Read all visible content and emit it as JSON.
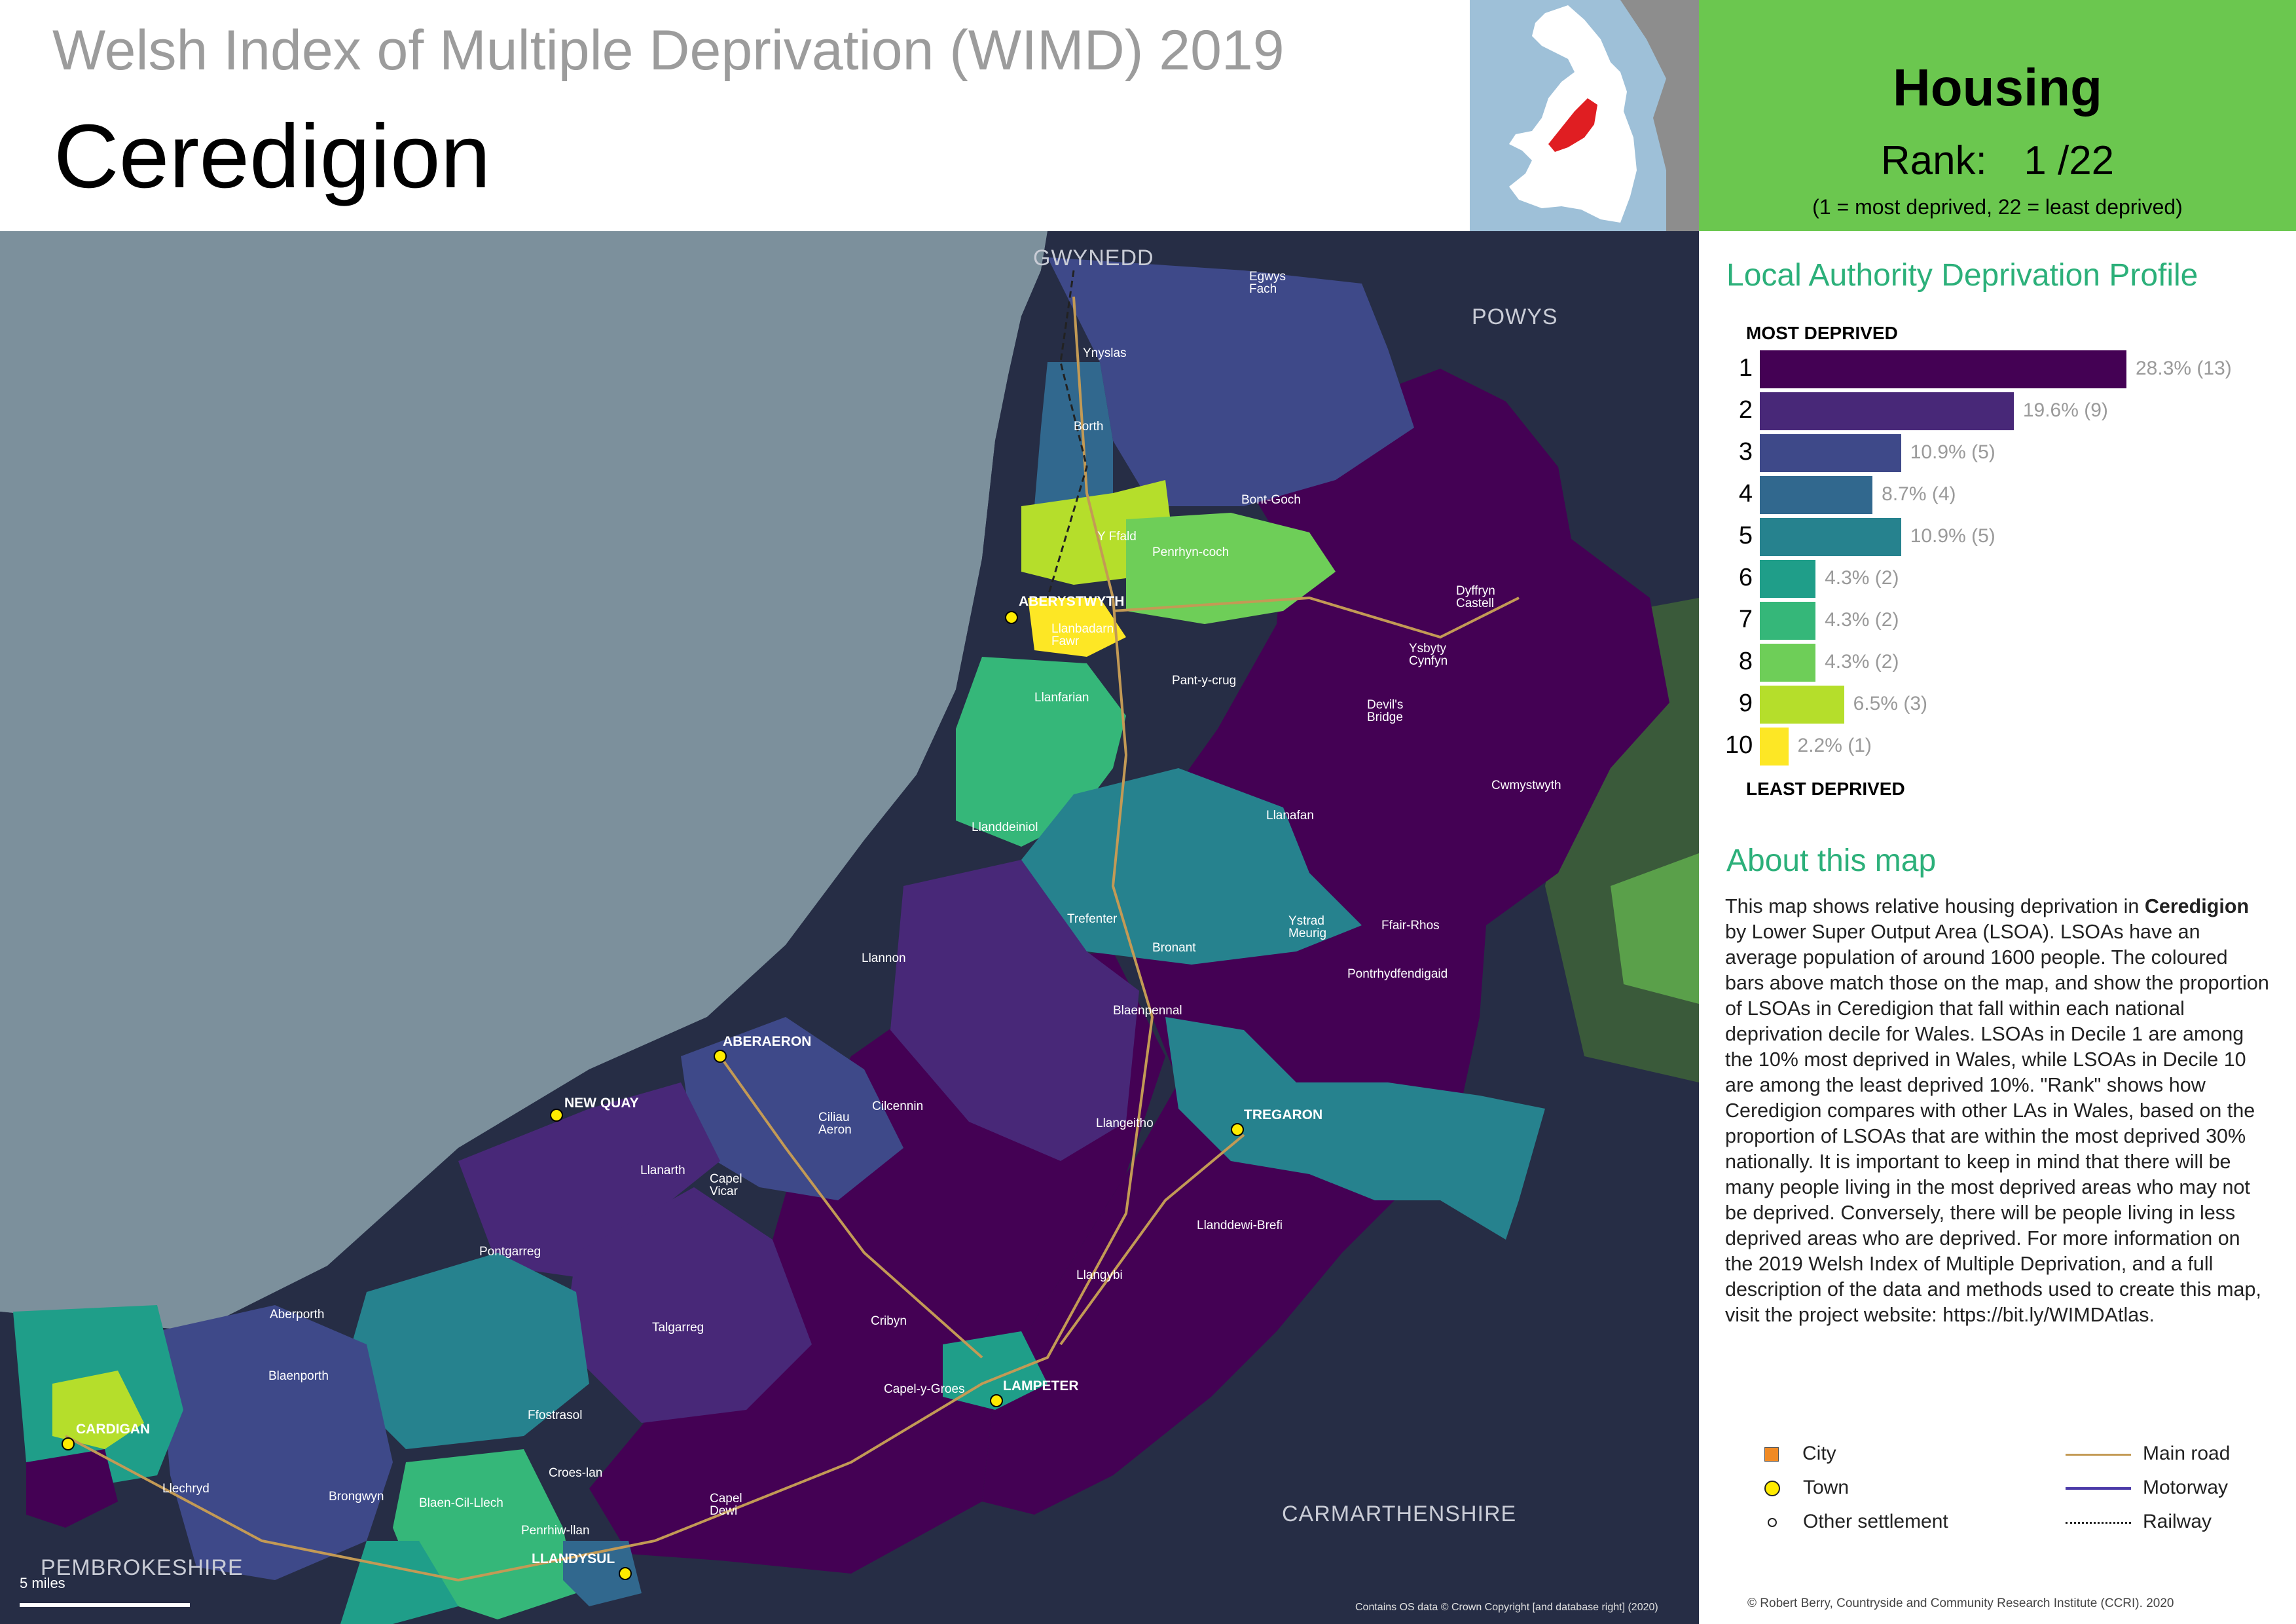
{
  "header": {
    "super_title": "Welsh Index of Multiple Deprivation (WIMD) 2019",
    "la_name": "Ceredigion"
  },
  "domain_panel": {
    "domain": "Housing",
    "rank_label": "Rank:",
    "rank_value": "1 /22",
    "rank_note": "(1 =   most deprived, 22 = least deprived)",
    "color": "#6bc74f"
  },
  "profile": {
    "title": "Local Authority Deprivation Profile",
    "most_label": "MOST DEPRIVED",
    "least_label": "LEAST DEPRIVED",
    "deciles": [
      {
        "decile": "1",
        "percent": 28.3,
        "label": "28.3% (13)",
        "color": "#440154"
      },
      {
        "decile": "2",
        "percent": 19.6,
        "label": "19.6% (9)",
        "color": "#482878"
      },
      {
        "decile": "3",
        "percent": 10.9,
        "label": "10.9% (5)",
        "color": "#3e4989"
      },
      {
        "decile": "4",
        "percent": 8.7,
        "label": "8.7% (4)",
        "color": "#31688e"
      },
      {
        "decile": "5",
        "percent": 10.9,
        "label": "10.9% (5)",
        "color": "#26828e"
      },
      {
        "decile": "6",
        "percent": 4.3,
        "label": "4.3% (2)",
        "color": "#1f9e89"
      },
      {
        "decile": "7",
        "percent": 4.3,
        "label": "4.3% (2)",
        "color": "#35b779"
      },
      {
        "decile": "8",
        "percent": 4.3,
        "label": "4.3% (2)",
        "color": "#6ece58"
      },
      {
        "decile": "9",
        "percent": 6.5,
        "label": "6.5% (3)",
        "color": "#b5de2b"
      },
      {
        "decile": "10",
        "percent": 2.2,
        "label": "2.2% (1)",
        "color": "#fde725"
      }
    ]
  },
  "about": {
    "title": "About this map",
    "text_before": "This map shows relative housing deprivation in ",
    "text_bold": "Ceredigion",
    "text_after": " by Lower Super Output Area (LSOA). LSOAs have an average population of around 1600 people. The coloured bars above match those on the map, and show the proportion of LSOAs in Ceredigion that fall within each national deprivation decile for Wales. LSOAs in Decile 1 are among the 10% most deprived in Wales, while LSOAs in Decile 10 are among the least deprived 10%. \"Rank\" shows how Ceredigion compares with other LAs in Wales, based on the proportion of LSOAs that are within the most deprived 30% nationally. It is important to keep in mind that there will be many people living in the most deprived areas who may not be deprived. Conversely, there will be people living in less deprived areas who are deprived. For more information on the 2019 Welsh Index of Multiple Deprivation, and a full description of the data and methods used to create this map, visit the project website: https://bit.ly/WIMDAtlas."
  },
  "legend": {
    "city": "City",
    "town": "Town",
    "other": "Other settlement",
    "main_road": "Main road",
    "motorway": "Motorway",
    "railway": "Railway",
    "city_color": "#f08a24",
    "town_color": "#ffeb00",
    "road_color": "#c39a55",
    "motorway_color": "#4b3aa8"
  },
  "credit": "© Robert Berry, Countryside and Community Research Institute (CCRI). 2020",
  "map": {
    "os_credit": "Contains OS data © Crown Copyright [and database right] (2020)",
    "scale_label": "5 miles",
    "counties": {
      "gwynedd": "GWYNEDD",
      "powys": "POWYS",
      "carmarthenshire": "CARMARTHENSHIRE",
      "pembrokeshire": "PEMBROKESHIRE"
    },
    "towns": {
      "aberystwyth": "ABERYSTWYTH",
      "aberaeron": "ABERAERON",
      "new_quay": "NEW QUAY",
      "tregaron": "TREGARON",
      "lampeter": "LAMPETER",
      "cardigan": "CARDIGAN",
      "llandysul": "LLANDYSUL"
    },
    "settlements": {
      "egwys_fach": "Egwys\nFach",
      "ynyslas": "Ynyslas",
      "borth": "Borth",
      "bont_goch": "Bont-Goch",
      "y_ffald": "Y Ffald",
      "penrhyn_coch": "Penrhyn-coch",
      "llanbadarn": "Llanbadarn\nFawr",
      "dyffryn_castell": "Dyffryn\nCastell",
      "ysbyty_cynfyn": "Ysbyty\nCynfyn",
      "pant_y_crug": "Pant-y-crug",
      "llanfarian": "Llanfarian",
      "devils_bridge": "Devil's\nBridge",
      "cwmystwyth": "Cwmystwyth",
      "llanafan": "Llanafan",
      "llanddeiniol": "Llanddeiniol",
      "trefenter": "Trefenter",
      "ystrad_meurig": "Ystrad\nMeurig",
      "ffair_rhos": "Ffair-Rhos",
      "bronant": "Bronant",
      "pontrhydfendigaid": "Pontrhydfendigaid",
      "llannon": "Llannon",
      "blaenpennal": "Blaenpennal",
      "cilcennin": "Cilcennin",
      "ciliau_aeron": "Ciliau\nAeron",
      "llangeitho": "Llangeitho",
      "llanarth": "Llanarth",
      "capel_dewi_vicar": "Capel\nVicar",
      "llanddewi_brefi": "Llanddewi-Brefi",
      "pontgarreg": "Pontgarreg",
      "llangybi": "Llangybi",
      "aberporth": "Aberporth",
      "talgarreg": "Talgarreg",
      "cribyn": "Cribyn",
      "blaenporth": "Blaenporth",
      "capel_y_groes": "Capel-y-Groes",
      "ffostrasol": "Ffostrasol",
      "croes_lan": "Croes-lan",
      "llechryd": "Llechryd",
      "brongwyn": "Brongwyn",
      "blaen_cil_llech": "Blaen-Cil-Llech",
      "capel_dewi": "Capel\nDewi",
      "penrhiw_llan": "Penrhiw-llan"
    }
  }
}
